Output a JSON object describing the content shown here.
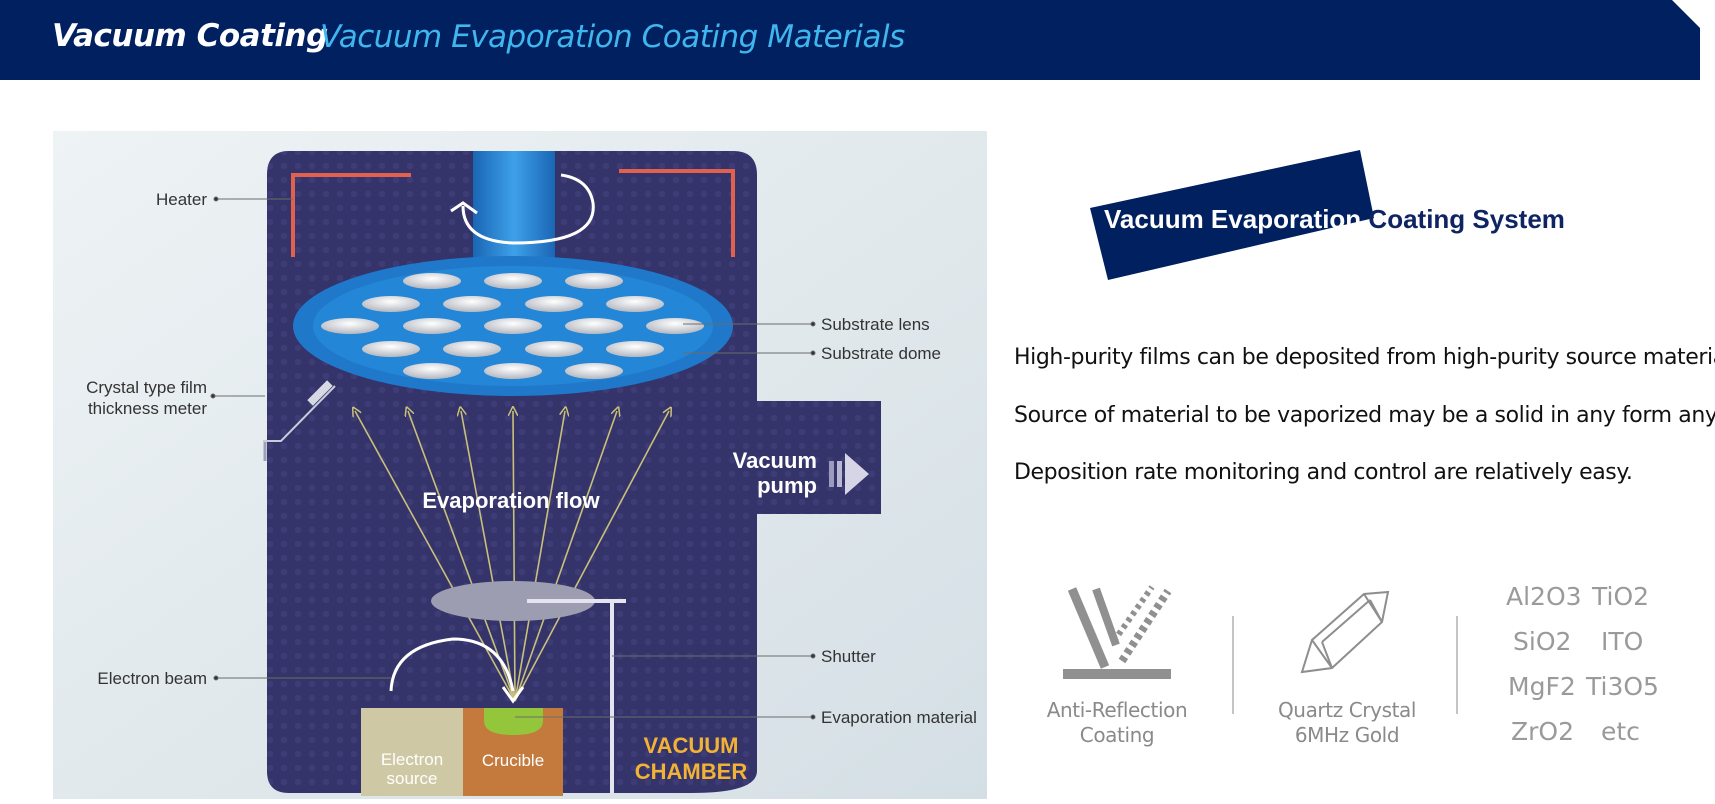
{
  "header": {
    "title": "Vacuum Coating",
    "subtitle": "Vacuum Evaporation Coating Materials",
    "bg_color": "#002060",
    "accent_color": "#3fb6ee"
  },
  "diagram": {
    "callouts": {
      "heater": "Heater",
      "crystal_meter_line1": "Crystal type film",
      "crystal_meter_line2": "thickness meter",
      "electron_beam": "Electron beam",
      "substrate_lens": "Substrate lens",
      "substrate_dome": "Substrate dome",
      "shutter": "Shutter",
      "evaporation_material": "Evaporation material"
    },
    "labels": {
      "evaporation_flow": "Evaporation flow",
      "vacuum_pump_line1": "Vacuum",
      "vacuum_pump_line2": "pump",
      "electron_source_line1": "Electron",
      "electron_source_line2": "source",
      "crucible": "Crucible",
      "chamber_line1": "VACUUM",
      "chamber_line2": "CHAMBER"
    },
    "colors": {
      "chamber": "#34336a",
      "heater": "#e2604e",
      "dome": "#1f78c9",
      "chamber_label": "#f2b233",
      "crucible": "#c37a3c",
      "electron_source": "#cfc8a4",
      "material": "#93c63b"
    }
  },
  "system": {
    "title": "Vacuum Evaporation Coating System"
  },
  "descriptions": [
    "High-purity films can be deposited from high-purity source material.",
    "Source of material to be vaporized may be a solid in any form any purity.",
    "Deposition rate monitoring and control are relatively easy."
  ],
  "features": [
    {
      "icon": "anti-reflection-icon",
      "line1": "Anti-Reflection",
      "line2": "Coating"
    },
    {
      "icon": "quartz-crystal-icon",
      "line1": "Quartz Crystal",
      "line2": "6MHz Gold"
    }
  ],
  "materials": [
    "Al2O3",
    "TiO2",
    "SiO2",
    "ITO",
    "MgF2",
    "Ti3O5",
    "ZrO2",
    "etc"
  ]
}
